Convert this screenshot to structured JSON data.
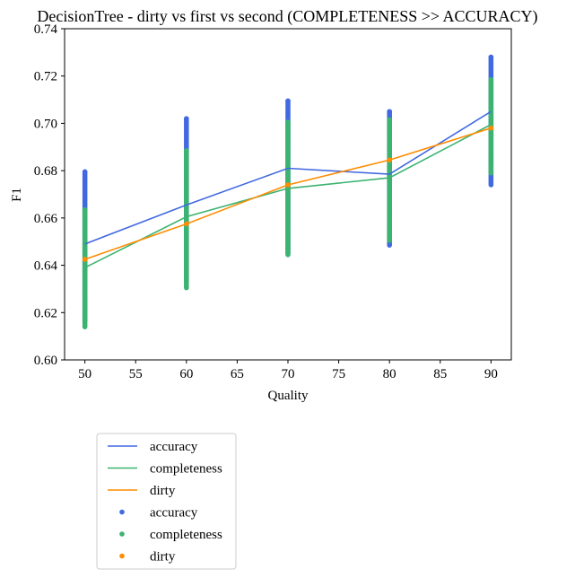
{
  "chart_data": {
    "type": "line",
    "title": "DecisionTree - dirty vs first vs second (COMPLETENESS >> ACCURACY)",
    "xlabel": "Quality",
    "ylabel": "F1",
    "xlim": [
      48,
      92
    ],
    "ylim": [
      0.6,
      0.74
    ],
    "xticks": [
      "50",
      "55",
      "60",
      "65",
      "70",
      "75",
      "80",
      "85",
      "90"
    ],
    "yticks": [
      "0.60",
      "0.62",
      "0.64",
      "0.66",
      "0.68",
      "0.70",
      "0.72",
      "0.74"
    ],
    "grid": false,
    "legend_placement": "below-left",
    "x": [
      50,
      60,
      70,
      80,
      90
    ],
    "series": [
      {
        "name": "accuracy",
        "kind": "line",
        "color": "#4169E1",
        "values": [
          0.649,
          0.6655,
          0.681,
          0.6785,
          0.705
        ]
      },
      {
        "name": "completeness",
        "kind": "line",
        "color": "#3CB371",
        "values": [
          0.639,
          0.6605,
          0.6725,
          0.677,
          0.6995
        ]
      },
      {
        "name": "dirty",
        "kind": "line",
        "color": "#FF8C00",
        "values": [
          0.6425,
          0.6575,
          0.674,
          0.6845,
          0.698
        ]
      },
      {
        "name": "accuracy",
        "kind": "scatter",
        "color": "#4169E1",
        "ranges": [
          {
            "x": 50,
            "min": 0.6165,
            "max": 0.6795
          },
          {
            "x": 60,
            "min": 0.6335,
            "max": 0.702
          },
          {
            "x": 70,
            "min": 0.645,
            "max": 0.7095
          },
          {
            "x": 80,
            "min": 0.6485,
            "max": 0.705
          },
          {
            "x": 90,
            "min": 0.674,
            "max": 0.728
          }
        ]
      },
      {
        "name": "completeness",
        "kind": "scatter",
        "color": "#3CB371",
        "ranges": [
          {
            "x": 50,
            "min": 0.614,
            "max": 0.6635
          },
          {
            "x": 60,
            "min": 0.6305,
            "max": 0.6885
          },
          {
            "x": 70,
            "min": 0.6445,
            "max": 0.7005
          },
          {
            "x": 80,
            "min": 0.6505,
            "max": 0.7015
          },
          {
            "x": 90,
            "min": 0.679,
            "max": 0.7185
          }
        ]
      },
      {
        "name": "dirty",
        "kind": "scatter",
        "color": "#FF8C00",
        "ranges": [
          {
            "x": 50,
            "min": 0.6425,
            "max": 0.6425
          },
          {
            "x": 60,
            "min": 0.6575,
            "max": 0.6575
          },
          {
            "x": 70,
            "min": 0.674,
            "max": 0.674
          },
          {
            "x": 80,
            "min": 0.6845,
            "max": 0.6845
          },
          {
            "x": 90,
            "min": 0.698,
            "max": 0.698
          }
        ]
      }
    ]
  }
}
